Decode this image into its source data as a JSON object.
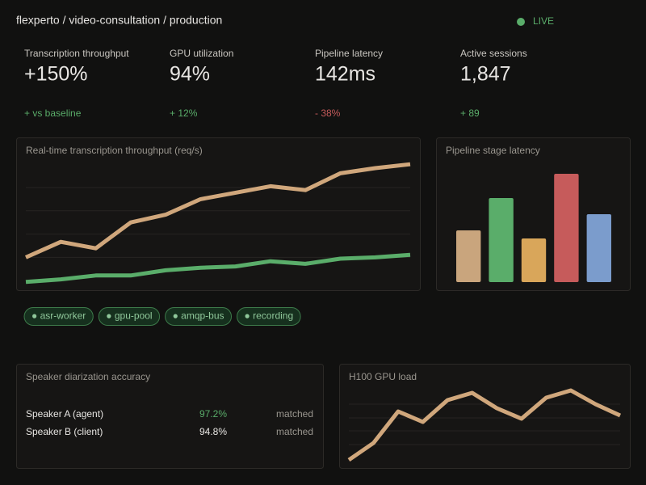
{
  "header": {
    "breadcrumb": "flexperto / video-consultation / production",
    "status": "LIVE"
  },
  "kpis": [
    {
      "label": "Transcription throughput",
      "value": "+150%",
      "delta": "+ vs baseline",
      "color": "#5aad6a"
    },
    {
      "label": "GPU utilization",
      "value": "94%",
      "delta": "+ 12%",
      "color": "#5aad6a"
    },
    {
      "label": "Pipeline latency",
      "value": "142ms",
      "delta": "- 38%",
      "color": "#c65b5b"
    },
    {
      "label": "Active sessions",
      "value": "1,847",
      "delta": "+ 89",
      "color": "#5aad6a"
    }
  ],
  "chart_data": [
    {
      "type": "line",
      "title": "Real-time transcription throughput (req/s)",
      "series": [
        {
          "color": "#d0a77c",
          "values": [
            26,
            38,
            33,
            53,
            59,
            71,
            76,
            81,
            78,
            91,
            95,
            98
          ]
        },
        {
          "color": "#5aad6a",
          "values": [
            7,
            9,
            12,
            12,
            16,
            18,
            19,
            23,
            21,
            25,
            26,
            28
          ]
        }
      ],
      "ylim": [
        0,
        100
      ],
      "yticks": [
        26,
        44,
        62,
        80
      ],
      "grid": true
    },
    {
      "type": "bar",
      "title": "Pipeline stage latency",
      "categories": [
        null,
        null,
        null,
        null,
        null
      ],
      "values": [
        64,
        104,
        54,
        134,
        84
      ],
      "colors": [
        "#c9a57d",
        "#5aad6a",
        "#d9a65a",
        "#c65b5b",
        "#7b9ccc"
      ],
      "ylim": [
        0,
        140
      ]
    },
    {
      "type": "line",
      "title": "H100 GPU load",
      "series": [
        {
          "color": "#d0a77c",
          "values": [
            6,
            27,
            66,
            53,
            80,
            89,
            70,
            57,
            83,
            92,
            75,
            61
          ]
        }
      ],
      "ylim": [
        0,
        100
      ],
      "yticks": [
        25,
        42,
        58,
        75
      ],
      "grid": true
    }
  ],
  "tags": [
    "● asr-worker",
    "● gpu-pool",
    "● amqp-bus",
    "● recording"
  ],
  "diarization": {
    "title": "Speaker diarization accuracy",
    "rows": [
      {
        "name": "Speaker A (agent)",
        "accuracy": "97.2%",
        "status": "matched",
        "color": "#5aad6a"
      },
      {
        "name": "Speaker B (client)",
        "accuracy": "94.8%",
        "status": "matched",
        "color": "#e8e6e3"
      }
    ]
  }
}
